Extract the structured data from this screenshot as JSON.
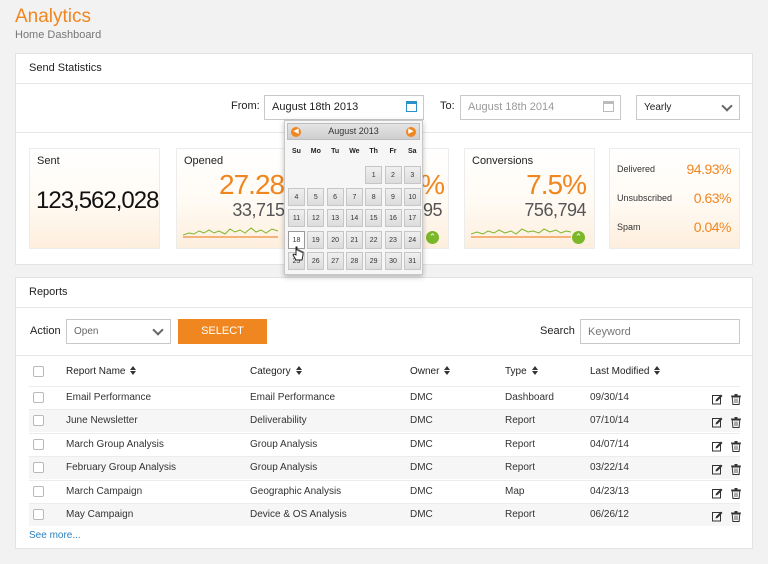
{
  "header": {
    "title": "Analytics",
    "subtitle": "Home Dashboard"
  },
  "stats": {
    "title": "Send Statistics",
    "from_label": "From:",
    "from_value": "August 18th 2013",
    "to_label": "To:",
    "to_value": "August 18th 2014",
    "period_value": "Yearly",
    "cards": {
      "sent": {
        "label": "Sent",
        "value": "123,562,028"
      },
      "opened": {
        "label": "Opened",
        "pct": "27.28%",
        "count": "33,715,23"
      },
      "hidden": {
        "pct": "%",
        "count": "95"
      },
      "conversions": {
        "label": "Conversions",
        "pct": "7.5%",
        "count": "756,794"
      }
    },
    "delivery": [
      {
        "label": "Delivered",
        "value": "94.93%"
      },
      {
        "label": "Unsubscribed",
        "value": "0.63%"
      },
      {
        "label": "Spam",
        "value": "0.04%"
      }
    ]
  },
  "datepicker": {
    "month": "August 2013",
    "weekdays": [
      "Su",
      "Mo",
      "Tu",
      "We",
      "Th",
      "Fr",
      "Sa"
    ],
    "weeks": [
      [
        "",
        "",
        "",
        "",
        "1",
        "2",
        "3"
      ],
      [
        "4",
        "5",
        "6",
        "7",
        "8",
        "9",
        "10"
      ],
      [
        "11",
        "12",
        "13",
        "14",
        "15",
        "16",
        "17"
      ],
      [
        "18",
        "19",
        "20",
        "21",
        "22",
        "23",
        "24"
      ],
      [
        "25",
        "26",
        "27",
        "28",
        "29",
        "30",
        "31"
      ]
    ],
    "selected_day": "18"
  },
  "reports": {
    "title": "Reports",
    "action_label": "Action",
    "action_value": "Open",
    "select_button": "SELECT",
    "search_label": "Search",
    "search_placeholder": "Keyword",
    "columns": [
      "Report Name",
      "Category",
      "Owner",
      "Type",
      "Last Modified"
    ],
    "rows": [
      {
        "name": "Email Performance",
        "category": "Email Performance",
        "owner": "DMC",
        "type": "Dashboard",
        "modified": "09/30/14"
      },
      {
        "name": "June Newsletter",
        "category": "Deliverability",
        "owner": "DMC",
        "type": "Report",
        "modified": "07/10/14"
      },
      {
        "name": "March Group Analysis",
        "category": "Group Analysis",
        "owner": "DMC",
        "type": "Report",
        "modified": "04/07/14"
      },
      {
        "name": "February Group Analysis",
        "category": "Group Analysis",
        "owner": "DMC",
        "type": "Report",
        "modified": "03/22/14"
      },
      {
        "name": "March Campaign",
        "category": "Geographic Analysis",
        "owner": "DMC",
        "type": "Map",
        "modified": "04/23/13"
      },
      {
        "name": "May Campaign",
        "category": "Device & OS Analysis",
        "owner": "DMC",
        "type": "Report",
        "modified": "06/26/12"
      }
    ],
    "see_more": "See more..."
  },
  "colors": {
    "accent": "#f0861f",
    "positive": "#7ab729",
    "link": "#2a7fc0"
  }
}
